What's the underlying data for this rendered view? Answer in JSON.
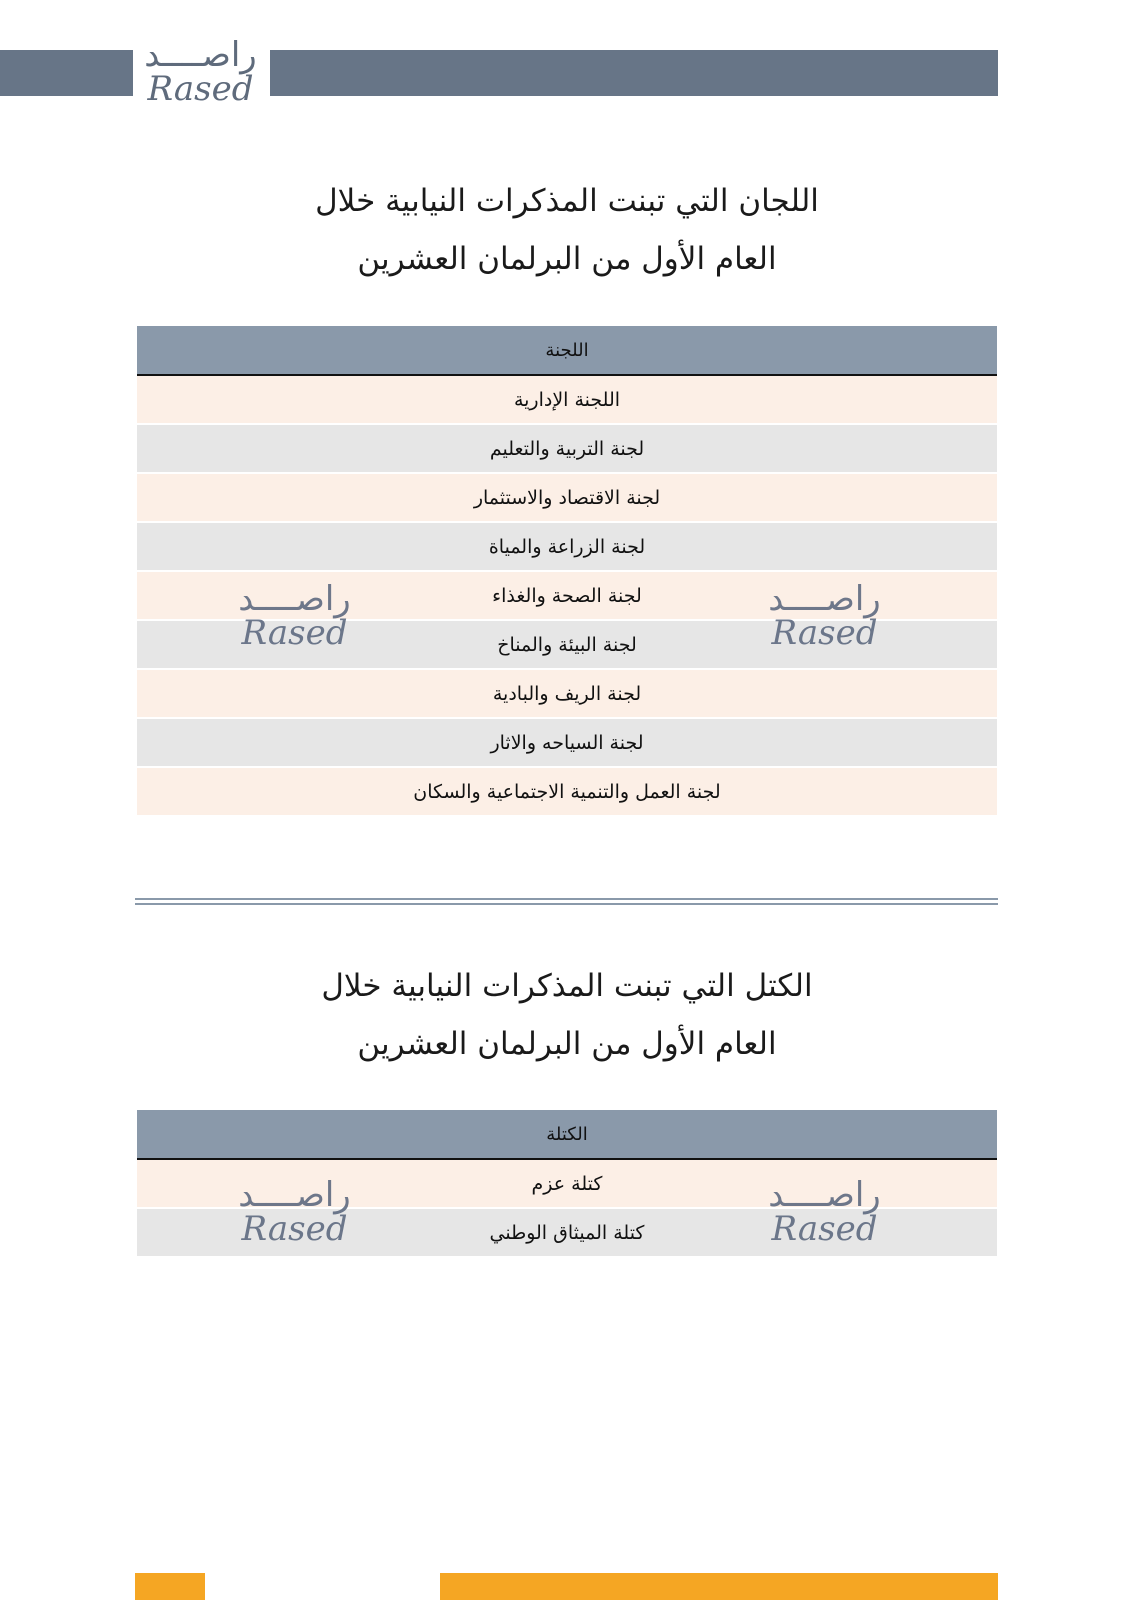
{
  "header": {
    "logo_ar": "راصــــد",
    "logo_en": "Rased",
    "band_color": "#677587"
  },
  "section1": {
    "title_line1": "اللجان التي تبنت المذكرات النيابية  خلال",
    "title_line2": "العام الأول من البرلمان العشرين",
    "column_header": "اللجنة",
    "rows": [
      "اللجنة الإدارية",
      "لجنة التربية والتعليم",
      "لجنة الاقتصاد والاستثمار",
      "لجنة  الزراعة والمياة",
      "لجنة الصحة والغذاء",
      "لجنة البيئة والمناخ",
      "لجنة الريف والبادية",
      "لجنة السياحه والاثار",
      "لجنة العمل والتنمية الاجتماعية والسكان"
    ]
  },
  "section2": {
    "title_line1": "الكتل التي تبنت المذكرات النيابية  خلال",
    "title_line2": "العام الأول من البرلمان العشرين",
    "column_header": "الكتلة",
    "rows": [
      "كتلة عزم",
      "كتلة الميثاق الوطني"
    ]
  },
  "watermark": {
    "ar": "راصــــد",
    "en": "Rased"
  },
  "colors": {
    "header_row": "#8a99aa",
    "row_odd": "#fcefe6",
    "row_even": "#e6e6e6",
    "footer": "#f5a623"
  }
}
